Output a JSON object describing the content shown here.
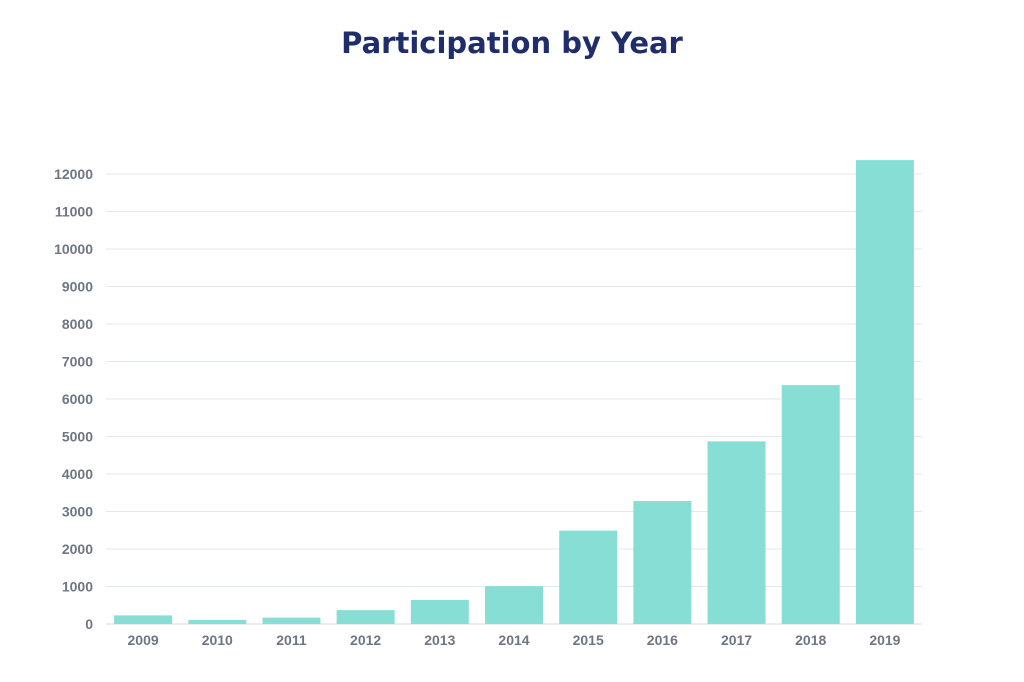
{
  "chart_data": {
    "type": "bar",
    "title": "Participation by Year",
    "xlabel": "",
    "ylabel": "",
    "categories": [
      "2009",
      "2010",
      "2011",
      "2012",
      "2013",
      "2014",
      "2015",
      "2016",
      "2017",
      "2018",
      "2019"
    ],
    "values": [
      230,
      110,
      170,
      370,
      640,
      1010,
      2490,
      3280,
      4870,
      6370,
      12370
    ],
    "ylim": [
      0,
      12000
    ],
    "yticks": [
      0,
      1000,
      2000,
      3000,
      4000,
      5000,
      6000,
      7000,
      8000,
      9000,
      10000,
      11000,
      12000
    ],
    "grid": true,
    "legend": "none",
    "colors": {
      "bar": "#86ded4",
      "grid": "#e3e7ee",
      "title": "#1f2d6b",
      "tick": "#6f7683"
    }
  }
}
